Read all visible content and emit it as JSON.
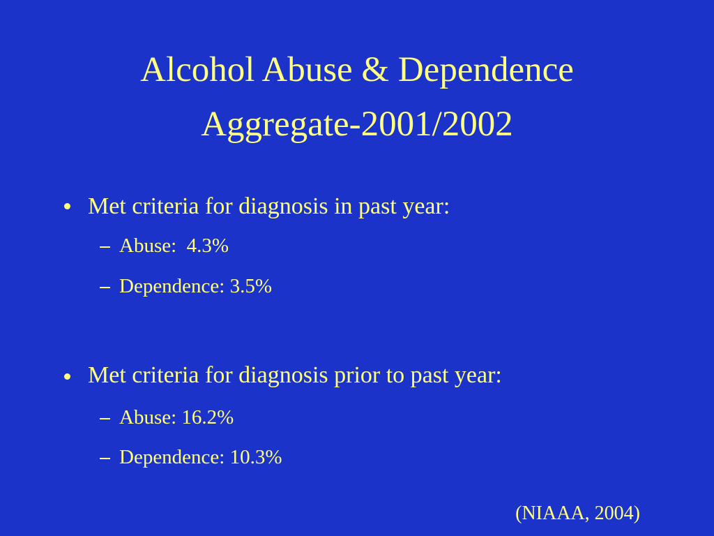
{
  "title": [
    "Alcohol Abuse & Dependence",
    "Aggregate-2001/2002"
  ],
  "bullets": [
    {
      "text": "Met criteria for diagnosis in past year:",
      "items": [
        "Abuse:  4.3%",
        "Dependence: 3.5%"
      ]
    },
    {
      "text": "Met criteria for diagnosis prior to past year:",
      "items": [
        "Abuse: 16.2%",
        "Dependence: 10.3%"
      ]
    }
  ],
  "citation": "(NIAAA, 2004)"
}
